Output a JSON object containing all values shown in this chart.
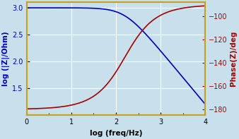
{
  "R": 1000,
  "C": 1e-06,
  "freq_log_min": 0,
  "freq_log_max": 4,
  "mag_ylim": [
    1.0,
    3.1
  ],
  "mag_yticks": [
    1.5,
    2.0,
    2.5,
    3.0
  ],
  "phase_ylim": [
    -185,
    -88
  ],
  "phase_yticks": [
    -180,
    -160,
    -140,
    -120,
    -100
  ],
  "xlabel": "log (freq/Hz)",
  "ylabel_left": "log (|Z|/Ohm)",
  "ylabel_right": "Phase(Z)/deg",
  "color_mag": "#0000BB",
  "color_phase": "#AA0000",
  "bg_color": "#c8e0ec",
  "grid_color": "#ffffff",
  "xticks": [
    0,
    1,
    2,
    3,
    4
  ],
  "figsize": [
    3.38,
    1.97
  ],
  "dpi": 100,
  "spine_color": "#c8a020",
  "tick_fontsize": 7,
  "label_fontsize": 7.5
}
